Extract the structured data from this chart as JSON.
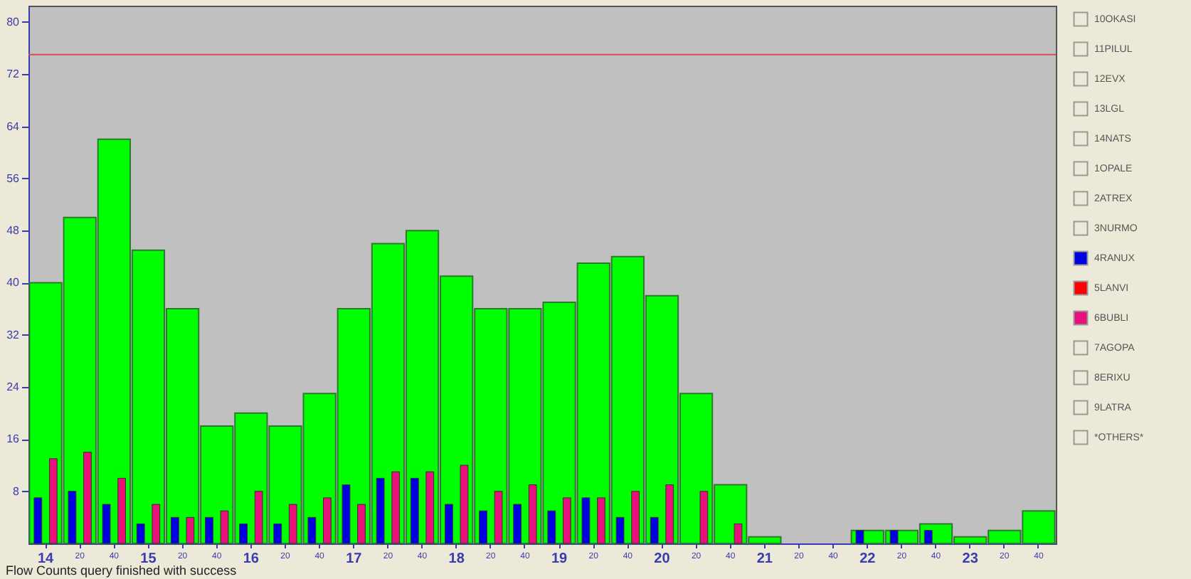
{
  "chart_data": {
    "type": "bar",
    "categories": [
      "14",
      "20",
      "40",
      "15",
      "20",
      "40",
      "16",
      "20",
      "40",
      "17",
      "20",
      "40",
      "18",
      "20",
      "40",
      "19",
      "20",
      "40",
      "20",
      "20",
      "40",
      "21",
      "20",
      "40",
      "22",
      "20",
      "40",
      "23",
      "20",
      "40"
    ],
    "series": [
      {
        "color": "#00ff00",
        "values": [
          40,
          50,
          62,
          45,
          36,
          18,
          20,
          18,
          23,
          36,
          46,
          48,
          41,
          36,
          36,
          37,
          43,
          44,
          38,
          23,
          9,
          1,
          0,
          0,
          2,
          2,
          3,
          1,
          2,
          5
        ]
      },
      {
        "name": "10OKASI",
        "color": null,
        "values": [
          null,
          null,
          null,
          null,
          null,
          null,
          null,
          null,
          null,
          null,
          null,
          null,
          null,
          null,
          null,
          null,
          null,
          null,
          null,
          null,
          null,
          null,
          null,
          null,
          null,
          null,
          null,
          null,
          null,
          null
        ]
      },
      {
        "name": "11PILUL",
        "color": null,
        "values": [
          null,
          null,
          null,
          null,
          null,
          null,
          null,
          null,
          null,
          null,
          null,
          null,
          null,
          null,
          null,
          null,
          null,
          null,
          null,
          null,
          null,
          null,
          null,
          null,
          null,
          null,
          null,
          null,
          null,
          null
        ]
      },
      {
        "name": "12EVX",
        "color": null,
        "values": [
          null,
          null,
          null,
          null,
          null,
          null,
          null,
          null,
          null,
          null,
          null,
          null,
          null,
          null,
          null,
          null,
          null,
          null,
          null,
          null,
          null,
          null,
          null,
          null,
          null,
          null,
          null,
          null,
          null,
          null
        ]
      },
      {
        "name": "13LGL",
        "color": null,
        "values": [
          null,
          null,
          null,
          null,
          null,
          null,
          null,
          null,
          null,
          null,
          null,
          null,
          null,
          null,
          null,
          null,
          null,
          null,
          null,
          null,
          null,
          null,
          null,
          null,
          null,
          null,
          null,
          null,
          null,
          null
        ]
      },
      {
        "name": "14NATS",
        "color": null,
        "values": [
          null,
          null,
          null,
          null,
          null,
          null,
          null,
          null,
          null,
          null,
          null,
          null,
          null,
          null,
          null,
          null,
          null,
          null,
          null,
          null,
          null,
          null,
          null,
          null,
          null,
          null,
          null,
          null,
          null,
          null
        ]
      },
      {
        "name": "1OPALE",
        "color": null,
        "values": [
          null,
          null,
          null,
          null,
          null,
          null,
          null,
          null,
          null,
          null,
          null,
          null,
          null,
          null,
          null,
          null,
          null,
          null,
          null,
          null,
          null,
          null,
          null,
          null,
          null,
          null,
          null,
          null,
          null,
          null
        ]
      },
      {
        "name": "2ATREX",
        "color": null,
        "values": [
          null,
          null,
          null,
          null,
          null,
          null,
          null,
          null,
          null,
          null,
          null,
          null,
          null,
          null,
          null,
          null,
          null,
          null,
          null,
          null,
          null,
          null,
          null,
          null,
          null,
          null,
          null,
          null,
          null,
          null
        ]
      },
      {
        "name": "3NURMO",
        "color": null,
        "values": [
          null,
          null,
          null,
          null,
          null,
          null,
          null,
          null,
          null,
          null,
          null,
          null,
          null,
          null,
          null,
          null,
          null,
          null,
          null,
          null,
          null,
          null,
          null,
          null,
          null,
          null,
          null,
          null,
          null,
          null
        ]
      },
      {
        "name": "4RANUX",
        "color": "#0000e0",
        "values": [
          7,
          8,
          6,
          3,
          4,
          4,
          3,
          3,
          4,
          9,
          10,
          10,
          6,
          5,
          6,
          5,
          7,
          4,
          4,
          null,
          null,
          null,
          null,
          null,
          2,
          2,
          2,
          null,
          null,
          null
        ]
      },
      {
        "name": "5LANVI",
        "color": "#ff0000",
        "values": [
          null,
          null,
          null,
          null,
          null,
          null,
          null,
          null,
          null,
          null,
          null,
          null,
          null,
          null,
          null,
          null,
          null,
          null,
          null,
          null,
          null,
          null,
          null,
          null,
          null,
          null,
          null,
          null,
          null,
          null
        ]
      },
      {
        "name": "6BUBLI",
        "color": "#e8107a",
        "values": [
          13,
          14,
          10,
          6,
          4,
          5,
          8,
          6,
          7,
          6,
          11,
          11,
          12,
          8,
          9,
          7,
          7,
          8,
          9,
          8,
          3,
          null,
          null,
          null,
          null,
          null,
          null,
          null,
          null,
          null
        ]
      },
      {
        "name": "7AGOPA",
        "color": null,
        "values": [
          null,
          null,
          null,
          null,
          null,
          null,
          null,
          null,
          null,
          null,
          null,
          null,
          null,
          null,
          null,
          null,
          null,
          null,
          null,
          null,
          null,
          null,
          null,
          null,
          null,
          null,
          null,
          null,
          null,
          null
        ]
      },
      {
        "name": "8ERIXU",
        "color": null,
        "values": [
          null,
          null,
          null,
          null,
          null,
          null,
          null,
          null,
          null,
          null,
          null,
          null,
          null,
          null,
          null,
          null,
          null,
          null,
          null,
          null,
          null,
          null,
          null,
          null,
          null,
          null,
          null,
          null,
          null,
          null
        ]
      },
      {
        "name": "9LATRA",
        "color": null,
        "values": [
          null,
          null,
          null,
          null,
          null,
          null,
          null,
          null,
          null,
          null,
          null,
          null,
          null,
          null,
          null,
          null,
          null,
          null,
          null,
          null,
          null,
          null,
          null,
          null,
          null,
          null,
          null,
          null,
          null,
          null
        ]
      },
      {
        "name": "*OTHERS*",
        "color": null,
        "values": [
          null,
          null,
          null,
          null,
          null,
          null,
          null,
          null,
          null,
          null,
          null,
          null,
          null,
          null,
          null,
          null,
          null,
          null,
          null,
          null,
          null,
          null,
          null,
          null,
          null,
          null,
          null,
          null,
          null,
          null
        ]
      }
    ],
    "ylim": [
      0,
      82.5
    ],
    "yticks": [
      8,
      16,
      24,
      32,
      40,
      48,
      56,
      64,
      72,
      80
    ],
    "ref_lines": [
      {
        "axis": "y",
        "value": 75,
        "color": "#d85050"
      }
    ],
    "legend": "right",
    "grid": false,
    "annotations": [
      "Flow Counts query finished with success"
    ]
  }
}
